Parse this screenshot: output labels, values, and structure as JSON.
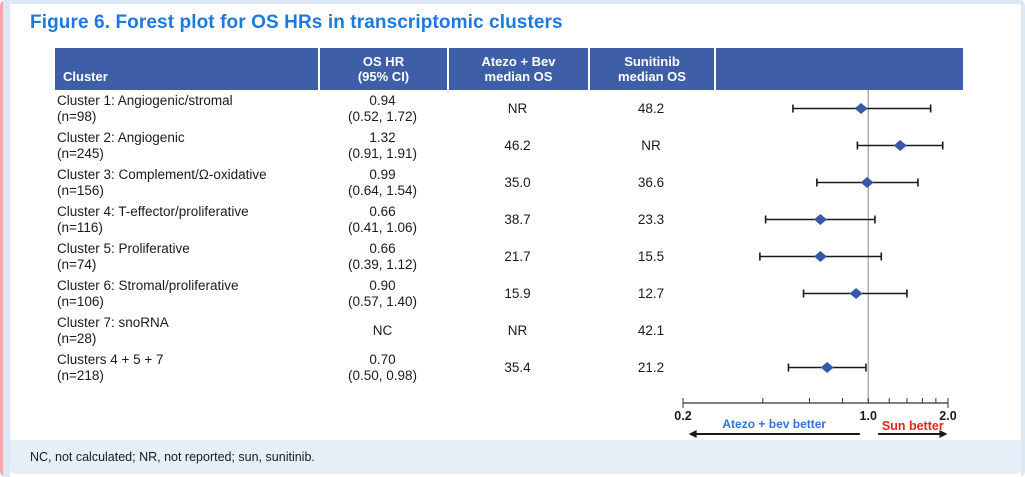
{
  "title": "Figure 6. Forest plot for OS HRs in transcriptomic clusters",
  "table": {
    "headers": [
      {
        "lines": [
          "Cluster"
        ]
      },
      {
        "lines": [
          "OS HR",
          "(95% CI)"
        ]
      },
      {
        "lines": [
          "Atezo + Bev",
          "median OS"
        ]
      },
      {
        "lines": [
          "Sunitinib",
          "median OS"
        ]
      },
      {
        "lines": []
      }
    ]
  },
  "chart_data": {
    "type": "forest",
    "title": "Forest plot for OS HRs in transcriptomic clusters",
    "rows": [
      {
        "cluster": "Cluster 1: Angiogenic/stromal",
        "n": "(n=98)",
        "hr_text": "0.94",
        "ci_text": "(0.52, 1.72)",
        "hr": 0.94,
        "ci_low": 0.52,
        "ci_high": 1.72,
        "atezo_bev_median_os": "NR",
        "sunitinib_median_os": "48.2"
      },
      {
        "cluster": "Cluster 2: Angiogenic",
        "n": "(n=245)",
        "hr_text": "1.32",
        "ci_text": "(0.91, 1.91)",
        "hr": 1.32,
        "ci_low": 0.91,
        "ci_high": 1.91,
        "atezo_bev_median_os": "46.2",
        "sunitinib_median_os": "NR"
      },
      {
        "cluster": "Cluster 3: Complement/Ω-oxidative",
        "n": "(n=156)",
        "hr_text": "0.99",
        "ci_text": "(0.64, 1.54)",
        "hr": 0.99,
        "ci_low": 0.64,
        "ci_high": 1.54,
        "atezo_bev_median_os": "35.0",
        "sunitinib_median_os": "36.6"
      },
      {
        "cluster": "Cluster 4: T-effector/proliferative",
        "n": "(n=116)",
        "hr_text": "0.66",
        "ci_text": "(0.41, 1.06)",
        "hr": 0.66,
        "ci_low": 0.41,
        "ci_high": 1.06,
        "atezo_bev_median_os": "38.7",
        "sunitinib_median_os": "23.3"
      },
      {
        "cluster": "Cluster 5: Proliferative",
        "n": "(n=74)",
        "hr_text": "0.66",
        "ci_text": "(0.39, 1.12)",
        "hr": 0.66,
        "ci_low": 0.39,
        "ci_high": 1.12,
        "atezo_bev_median_os": "21.7",
        "sunitinib_median_os": "15.5"
      },
      {
        "cluster": "Cluster 6: Stromal/proliferative",
        "n": "(n=106)",
        "hr_text": "0.90",
        "ci_text": "(0.57, 1.40)",
        "hr": 0.9,
        "ci_low": 0.57,
        "ci_high": 1.4,
        "atezo_bev_median_os": "15.9",
        "sunitinib_median_os": "12.7"
      },
      {
        "cluster": "Cluster 7: snoRNA",
        "n": "(n=28)",
        "hr_text": "NC",
        "ci_text": "",
        "hr": null,
        "ci_low": null,
        "ci_high": null,
        "atezo_bev_median_os": "NR",
        "sunitinib_median_os": "42.1"
      },
      {
        "cluster": "Clusters 4 + 5 + 7",
        "n": "(n=218)",
        "hr_text": "0.70",
        "ci_text": "(0.50, 0.98)",
        "hr": 0.7,
        "ci_low": 0.5,
        "ci_high": 0.98,
        "atezo_bev_median_os": "35.4",
        "sunitinib_median_os": "21.2"
      }
    ],
    "axis": {
      "scale": "log",
      "min": 0.2,
      "max": 2.0,
      "ref_line": 1.0,
      "labeled_ticks": [
        {
          "value": 0.2,
          "label": "0.2"
        },
        {
          "value": 1.0,
          "label": "1.0"
        },
        {
          "value": 2.0,
          "label": "2.0"
        }
      ],
      "minor_ticks": [
        0.2,
        0.4,
        0.6,
        0.8,
        1.0,
        1.2,
        1.4,
        1.6,
        1.8,
        2.0
      ]
    },
    "direction_labels": {
      "left": {
        "text": "Atezo + bev better",
        "color": "#3273d9",
        "from": 0.21,
        "to": 0.93
      },
      "right": {
        "text": "Sun better",
        "color": "#e8231f",
        "from": 1.09,
        "to": 1.99
      }
    },
    "colors": {
      "marker": "#3558ab",
      "whisker": "#1a1a1a",
      "ref_line": "#9a9a9a",
      "axis": "#333333",
      "tick_label": "#1a1a1a"
    }
  },
  "footer": "NC, not calculated; NR, not reported; sun, sunitinib."
}
